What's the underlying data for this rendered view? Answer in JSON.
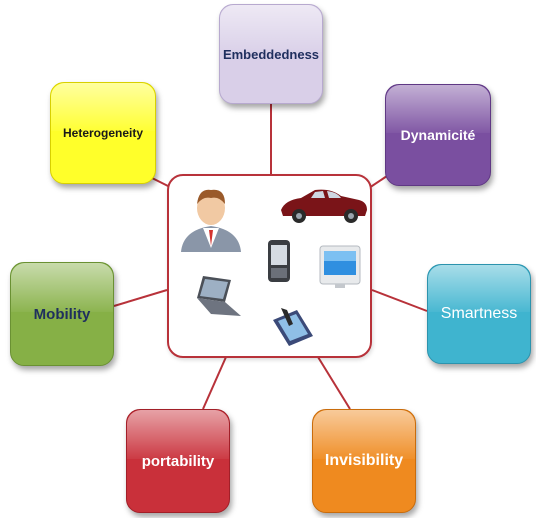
{
  "diagram": {
    "center": {
      "icons": [
        "person-icon",
        "car-icon",
        "smartphone-icon",
        "monitor-icon",
        "laptop-icon",
        "tablet-icon"
      ]
    },
    "nodes": [
      {
        "id": "embed",
        "label": "Embeddedness",
        "color": "#d9cfe8"
      },
      {
        "id": "dyn",
        "label": "Dynamicité",
        "color": "#7a4fa0"
      },
      {
        "id": "smart",
        "label": "Smartness",
        "color": "#3fb4cf"
      },
      {
        "id": "invis",
        "label": "Invisibility",
        "color": "#ef8a1f"
      },
      {
        "id": "port",
        "label": "portability",
        "color": "#c9303a"
      },
      {
        "id": "mob",
        "label": "Mobility",
        "color": "#86b046"
      },
      {
        "id": "het",
        "label": "Heterogeneity",
        "color": "#ffff2a"
      }
    ],
    "connector_color": "#b8323a"
  }
}
